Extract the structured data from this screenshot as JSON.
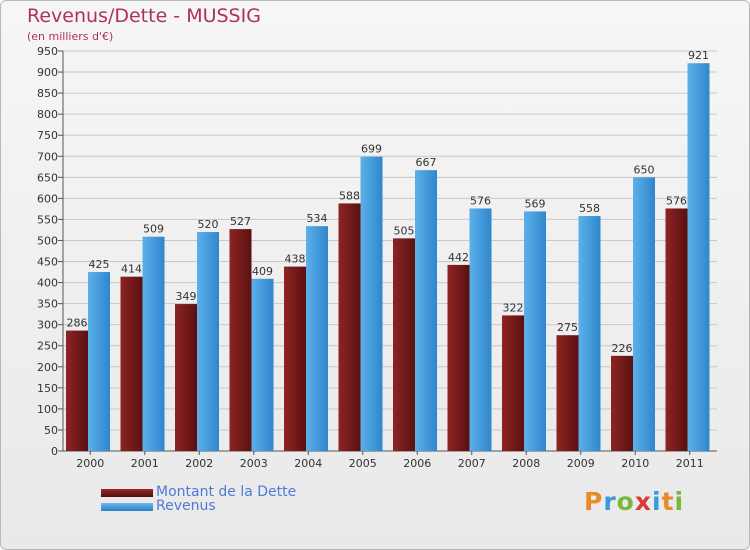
{
  "header": {
    "title": "Revenus/Dette - MUSSIG",
    "subtitle": "(en milliers d'€)"
  },
  "colors": {
    "dette": "#7a1c1c",
    "revenus": "#4aa3e2",
    "title": "#b0305c",
    "grid": "#c8c8c8"
  },
  "chart_data": {
    "type": "bar",
    "title": "Revenus/Dette - MUSSIG",
    "ylabel": "(en milliers d'€)",
    "xlabel": "",
    "ylim": [
      0,
      950
    ],
    "ytick_step": 50,
    "grid": true,
    "legend": "bottom-left",
    "categories": [
      "2000",
      "2001",
      "2002",
      "2003",
      "2004",
      "2005",
      "2006",
      "2007",
      "2008",
      "2009",
      "2010",
      "2011"
    ],
    "series": [
      {
        "name": "Montant de la Dette",
        "values": [
          286,
          414,
          349,
          527,
          438,
          588,
          505,
          442,
          322,
          275,
          226,
          576
        ]
      },
      {
        "name": "Revenus",
        "values": [
          425,
          509,
          520,
          409,
          534,
          699,
          667,
          576,
          569,
          558,
          650,
          921
        ]
      }
    ]
  },
  "legend": {
    "items": [
      {
        "label": "Montant de la Dette"
      },
      {
        "label": "Revenus"
      }
    ]
  },
  "logo": {
    "letters": [
      "P",
      "r",
      "o",
      "x",
      "i",
      "t",
      "i"
    ]
  }
}
